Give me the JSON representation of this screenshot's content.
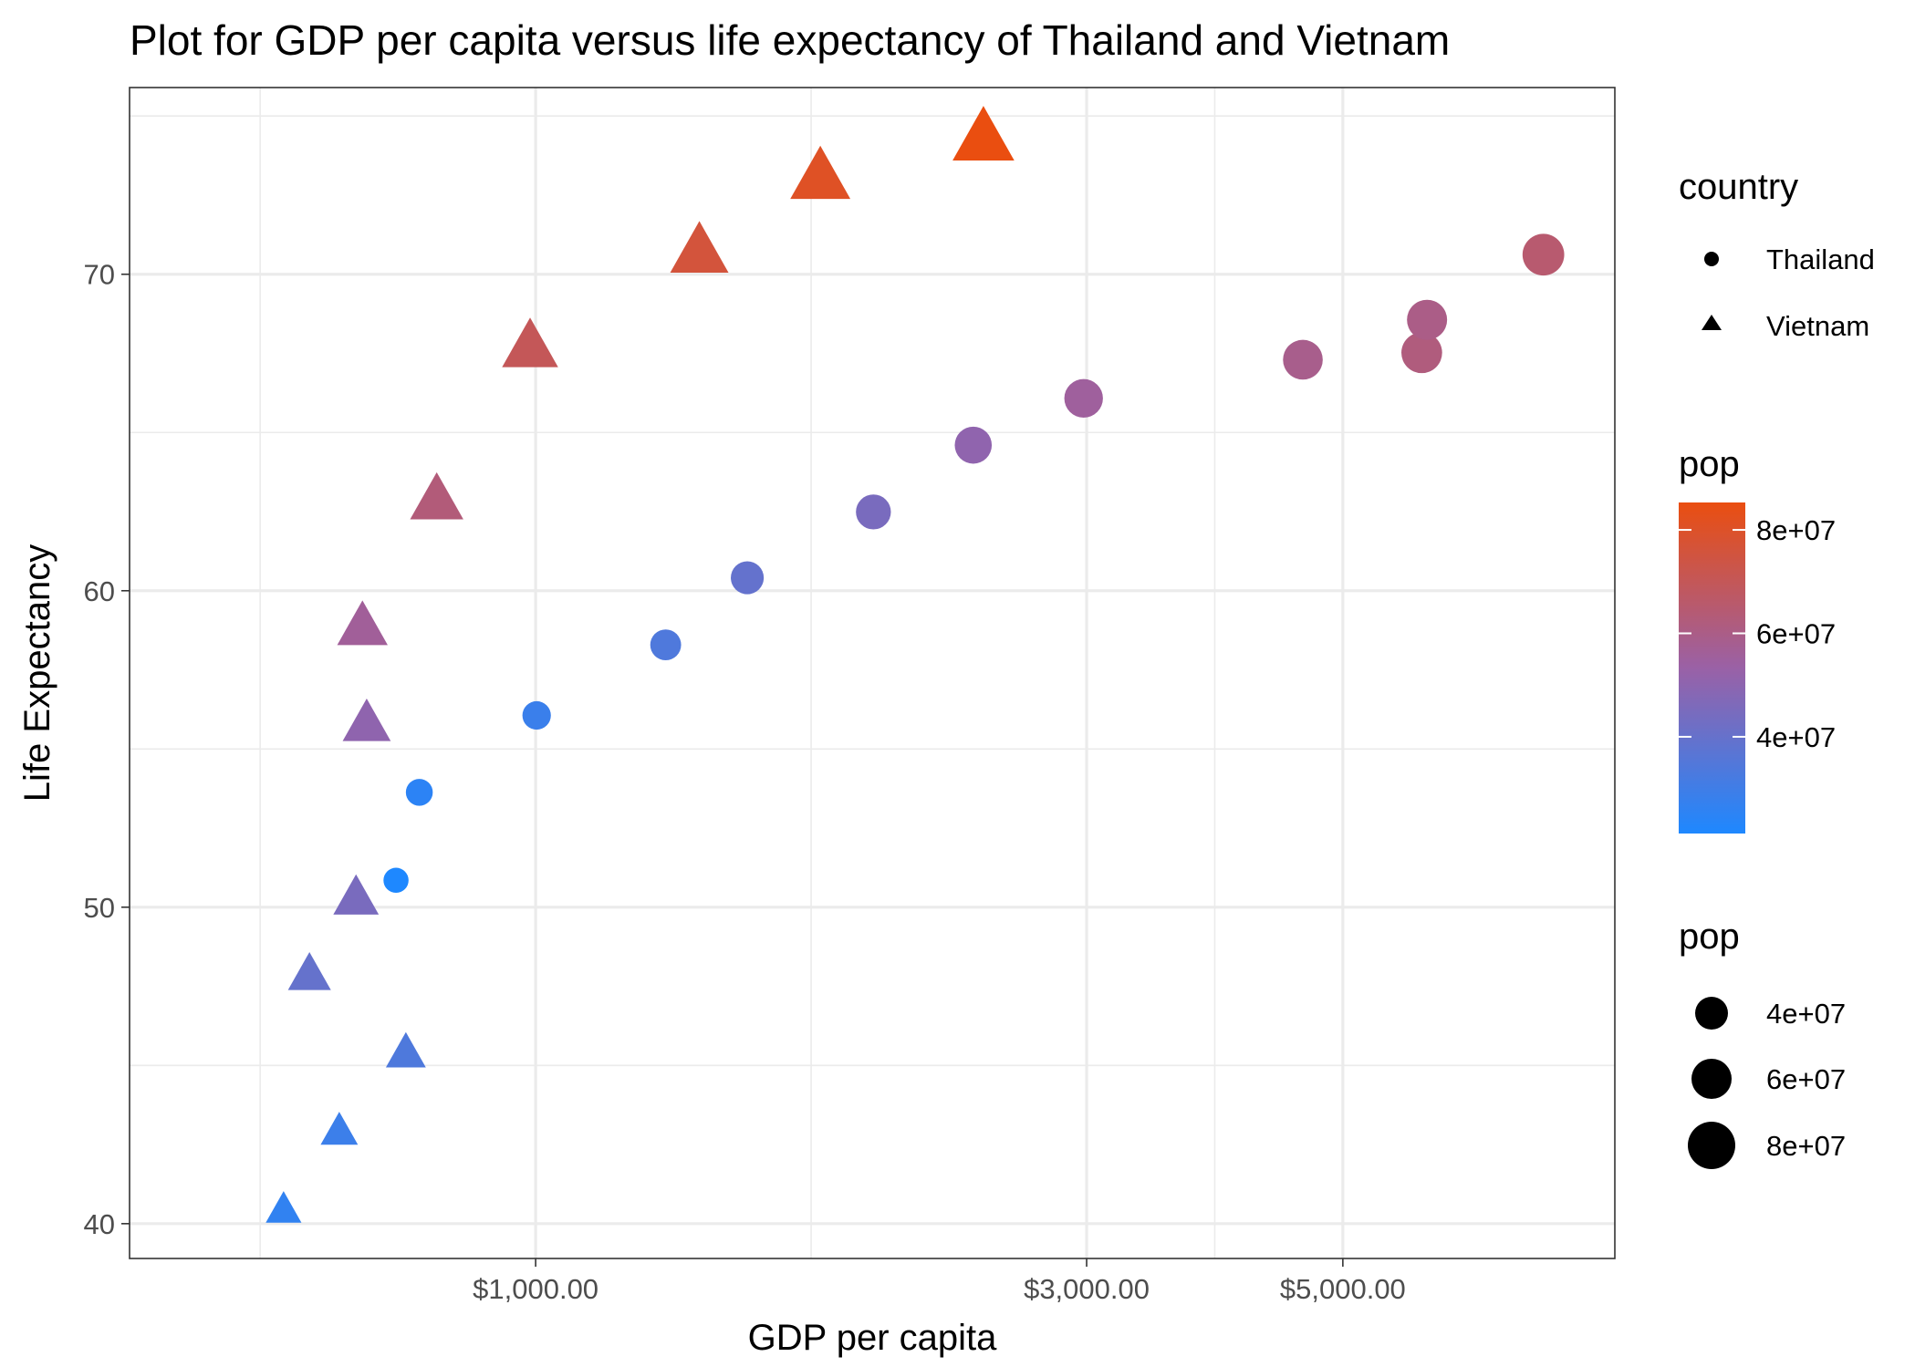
{
  "chart_data": {
    "type": "scatter",
    "title": "Plot for GDP per capita versus life expectancy of Thailand and Vietnam",
    "xlabel": "GDP per capita",
    "ylabel": "Life Expectancy",
    "x_scale": "log10",
    "xlim": [
      445,
      8600
    ],
    "ylim": [
      38.9,
      75.9
    ],
    "x_ticks": [
      {
        "value": 1000,
        "label": "$1,000.00"
      },
      {
        "value": 3000,
        "label": "$3,000.00"
      },
      {
        "value": 5000,
        "label": "$5,000.00"
      }
    ],
    "y_ticks": [
      {
        "value": 40,
        "label": "40"
      },
      {
        "value": 50,
        "label": "50"
      },
      {
        "value": 60,
        "label": "60"
      },
      {
        "value": 70,
        "label": "70"
      }
    ],
    "grid": true,
    "legend_placement": "right",
    "series": [
      {
        "name": "Thailand",
        "shape": "circle",
        "points": [
          {
            "x": 757,
            "y": 50.85,
            "pop": 21300000
          },
          {
            "x": 793,
            "y": 53.63,
            "pop": 25000000
          },
          {
            "x": 1002,
            "y": 56.06,
            "pop": 28400000
          },
          {
            "x": 1296,
            "y": 58.29,
            "pop": 34000000
          },
          {
            "x": 1525,
            "y": 60.41,
            "pop": 39300000
          },
          {
            "x": 1961,
            "y": 62.49,
            "pop": 44700000
          },
          {
            "x": 2393,
            "y": 64.6,
            "pop": 50600000
          },
          {
            "x": 2982,
            "y": 66.08,
            "pop": 55300000
          },
          {
            "x": 4617,
            "y": 67.3,
            "pop": 58800000
          },
          {
            "x": 5852,
            "y": 67.52,
            "pop": 62000000
          },
          {
            "x": 5914,
            "y": 68.56,
            "pop": 60000000
          },
          {
            "x": 7458,
            "y": 70.62,
            "pop": 65100000
          }
        ]
      },
      {
        "name": "Vietnam",
        "shape": "triangle",
        "points": [
          {
            "x": 605,
            "y": 40.41,
            "pop": 26200000
          },
          {
            "x": 676,
            "y": 42.89,
            "pop": 28999000
          },
          {
            "x": 772,
            "y": 45.36,
            "pop": 33800000
          },
          {
            "x": 637,
            "y": 47.84,
            "pop": 39500000
          },
          {
            "x": 699,
            "y": 50.25,
            "pop": 44700000
          },
          {
            "x": 714,
            "y": 55.76,
            "pop": 50500000
          },
          {
            "x": 708,
            "y": 58.82,
            "pop": 56100000
          },
          {
            "x": 821,
            "y": 62.82,
            "pop": 62800000
          },
          {
            "x": 989,
            "y": 67.66,
            "pop": 69900000
          },
          {
            "x": 1386,
            "y": 70.67,
            "pop": 76000000
          },
          {
            "x": 1764,
            "y": 73.02,
            "pop": 80900000
          },
          {
            "x": 2442,
            "y": 74.25,
            "pop": 85300000
          }
        ]
      }
    ],
    "legends": {
      "shape": {
        "title": "country",
        "entries": [
          {
            "label": "Thailand",
            "shape": "circle"
          },
          {
            "label": "Vietnam",
            "shape": "triangle"
          }
        ]
      },
      "color": {
        "title": "pop",
        "low_color": "#1E88FF",
        "mid_color": "#9A61A6",
        "high_color": "#EA4E10",
        "range": [
          21300000,
          85300000
        ],
        "ticks": [
          {
            "value": 40000000,
            "label": "4e+07"
          },
          {
            "value": 60000000,
            "label": "6e+07"
          },
          {
            "value": 80000000,
            "label": "8e+07"
          }
        ]
      },
      "size": {
        "title": "pop",
        "entries": [
          {
            "value": 40000000,
            "label": "4e+07"
          },
          {
            "value": 60000000,
            "label": "6e+07"
          },
          {
            "value": 80000000,
            "label": "8e+07"
          }
        ]
      }
    },
    "colors": {
      "grid": "#ebebeb",
      "panel_border": "#333333",
      "tick_text": "#4d4d4d",
      "background": "#ffffff"
    }
  }
}
